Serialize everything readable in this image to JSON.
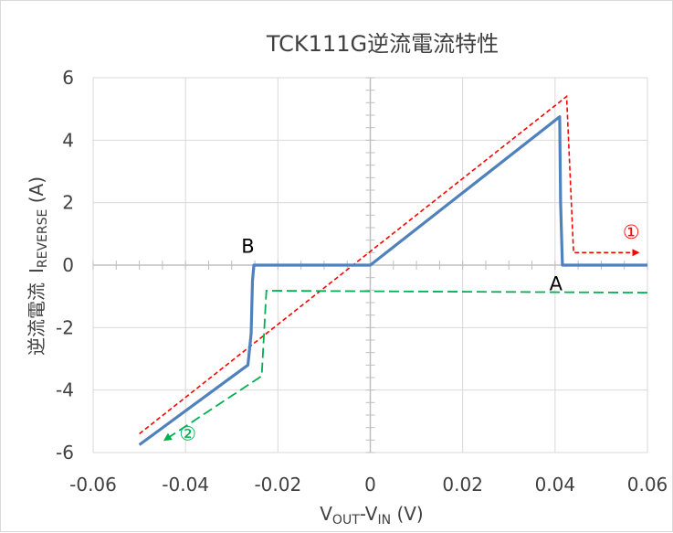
{
  "chart_data": {
    "type": "line",
    "title": "TCK111G逆流電流特性",
    "xlabel": {
      "main": "V",
      "sub1": "OUT",
      "mid": "-V",
      "sub2": "IN",
      "unit": " (V)"
    },
    "ylabel": {
      "jp": "逆流電流",
      "main": "I",
      "sub": "REVERSE",
      "unit": " (A)"
    },
    "xlim": [
      -0.06,
      0.06
    ],
    "ylim": [
      -6,
      6
    ],
    "xticks": [
      "-0.06",
      "-0.04",
      "-0.02",
      "0",
      "0.02",
      "0.04",
      "0.06"
    ],
    "yticks": [
      "6",
      "4",
      "2",
      "0",
      "-2",
      "-4",
      "-6"
    ],
    "grid": true,
    "series": [
      {
        "style": "solid",
        "color": "#4f81bd",
        "x": [
          -0.05,
          -0.0265,
          -0.0258,
          -0.0255,
          -0.0252,
          0.0,
          0.041,
          0.0412,
          0.0416,
          0.06
        ],
        "y": [
          -5.75,
          -3.2,
          -2.2,
          -0.5,
          0.0,
          0.0,
          4.75,
          2.0,
          0.0,
          0.0
        ]
      },
      {
        "style": "dashed",
        "color": "#ff0000",
        "x": [
          -0.05,
          0.0425,
          0.044,
          0.0444,
          0.058
        ],
        "y": [
          -5.4,
          5.4,
          0.4,
          0.4,
          0.4
        ]
      },
      {
        "style": "dashed",
        "color": "#00b050",
        "x": [
          0.06,
          -0.0225,
          -0.0235,
          -0.0445
        ],
        "y": [
          -0.88,
          -0.82,
          -3.55,
          -5.6
        ]
      }
    ],
    "annotations": [
      {
        "text": "B",
        "x": -0.0265,
        "y": 0.6
      },
      {
        "text": "A",
        "x": 0.0402,
        "y": -0.6
      },
      {
        "text": "①",
        "x": 0.0565,
        "y": 1.05
      },
      {
        "text": "②",
        "x": -0.0395,
        "y": -5.4
      }
    ]
  }
}
